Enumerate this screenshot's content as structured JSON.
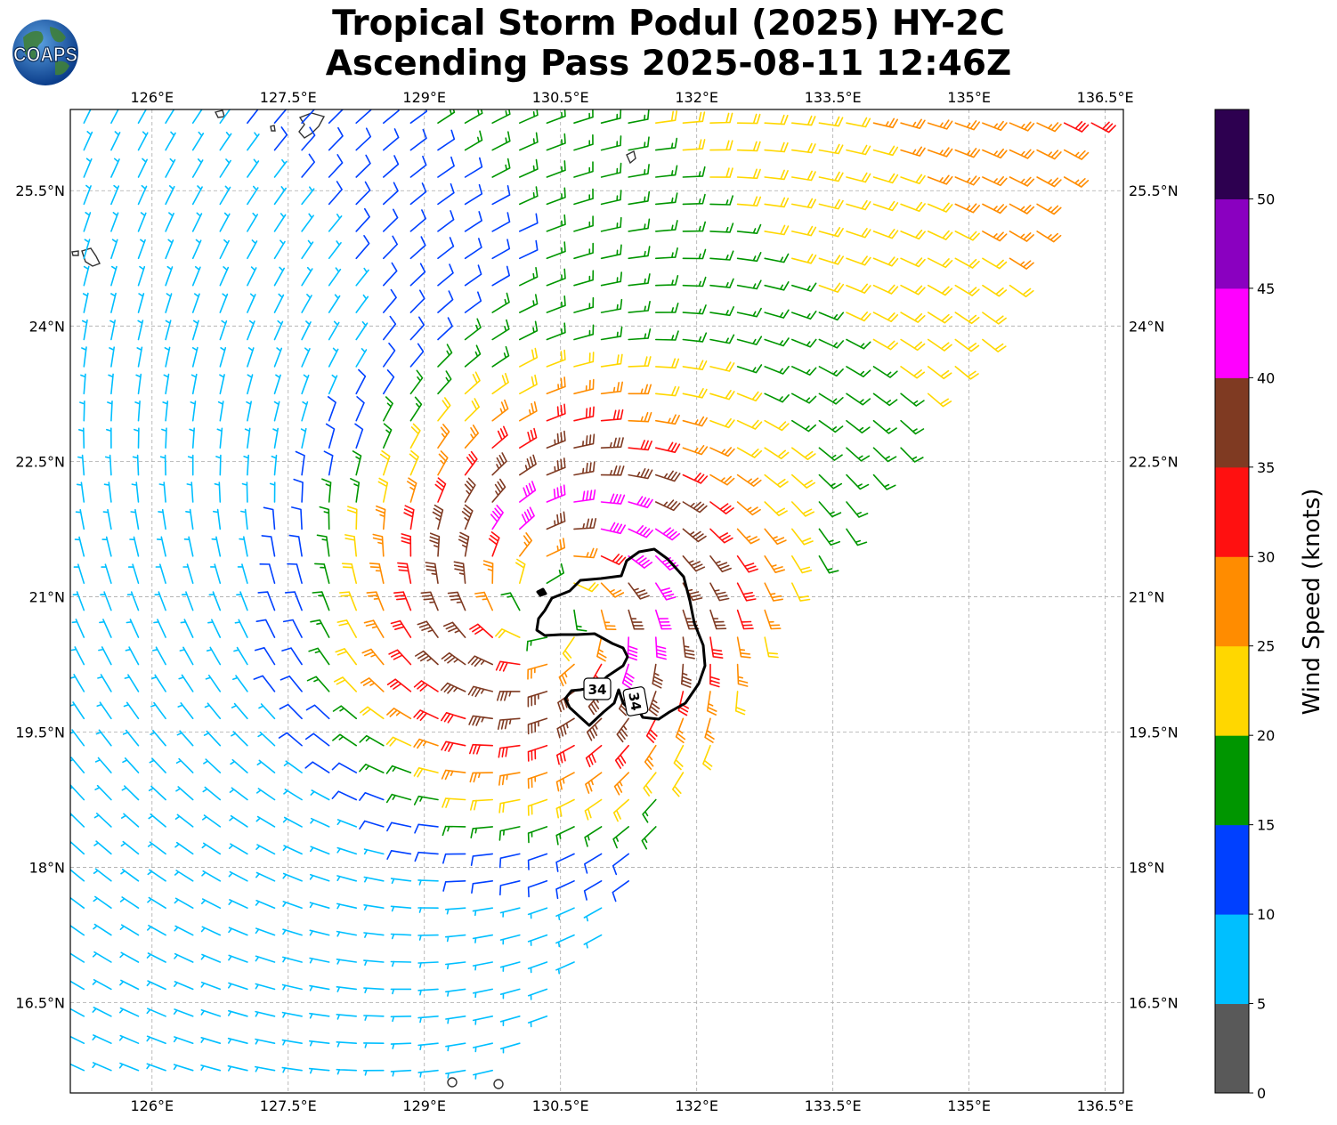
{
  "title": {
    "line1": "Tropical Storm Podul (2025) HY-2C",
    "line2": "Ascending Pass 2025-08-11 12:46Z"
  },
  "logo": {
    "text": "COAPS",
    "icon": "globe-icon"
  },
  "map": {
    "lon_ticks": [
      "126°E",
      "127.5°E",
      "129°E",
      "130.5°E",
      "132°E",
      "133.5°E",
      "135°E",
      "136.5°E"
    ],
    "lat_ticks": [
      "25.5°N",
      "24°N",
      "22.5°N",
      "21°N",
      "19.5°N",
      "18°N",
      "16.5°N"
    ],
    "lon_values": [
      126,
      127.5,
      129,
      130.5,
      132,
      133.5,
      135,
      136.5
    ],
    "lat_values": [
      25.5,
      24,
      22.5,
      21,
      19.5,
      18,
      16.5
    ],
    "extent": {
      "lon_min": 125.1,
      "lon_max": 136.7,
      "lat_min": 15.5,
      "lat_max": 26.4
    },
    "storm_center": {
      "lon": 130.4,
      "lat": 20.9
    },
    "contour_labels": [
      "34",
      "34"
    ],
    "gridlines": true
  },
  "colorbar": {
    "label": "Wind Speed (knots)",
    "ticks": [
      "0",
      "5",
      "10",
      "15",
      "20",
      "25",
      "30",
      "35",
      "40",
      "45",
      "50"
    ],
    "colors": [
      "#595959",
      "#00bfff",
      "#0040ff",
      "#009600",
      "#ffd700",
      "#ff8c00",
      "#ff1010",
      "#7f3a22",
      "#ff00ff",
      "#8a00c0",
      "#2d0050"
    ]
  }
}
